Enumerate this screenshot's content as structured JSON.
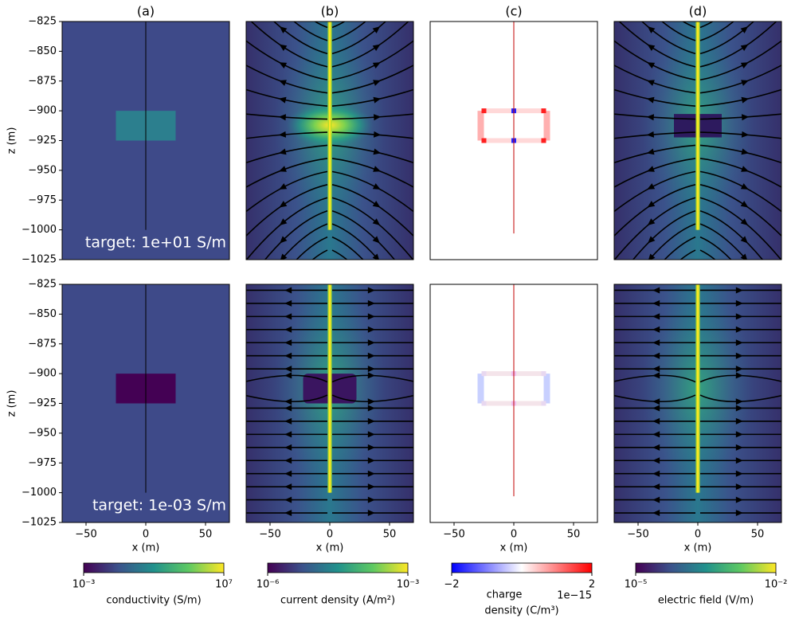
{
  "chart_data": [
    {
      "type": "field",
      "title": "(a)",
      "ylabel": "z (m)",
      "xlim": [
        -70,
        70
      ],
      "ylim": [
        -1025,
        -825
      ],
      "yticks": [
        {
          "value": -825,
          "label": "−825"
        },
        {
          "value": -850,
          "label": "−850"
        },
        {
          "value": -875,
          "label": "−875"
        },
        {
          "value": -900,
          "label": "−900"
        },
        {
          "value": -925,
          "label": "−925"
        },
        {
          "value": -950,
          "label": "−950"
        },
        {
          "value": -975,
          "label": "−975"
        },
        {
          "value": -1000,
          "label": "−1000"
        },
        {
          "value": -1025,
          "label": "−1025"
        }
      ],
      "annotation": "target: 1e+01 S/m"
    },
    {
      "type": "field",
      "title": "(b)",
      "xlim": [
        -70,
        70
      ],
      "ylim": [
        -1025,
        -825
      ]
    },
    {
      "type": "field",
      "title": "(c)",
      "xlim": [
        -70,
        70
      ],
      "ylim": [
        -1025,
        -825
      ]
    },
    {
      "type": "field",
      "title": "(d)",
      "xlim": [
        -70,
        70
      ],
      "ylim": [
        -1025,
        -825
      ]
    },
    {
      "type": "field",
      "ylabel": "z (m)",
      "xlabel": "x (m)",
      "xlim": [
        -70,
        70
      ],
      "ylim": [
        -1025,
        -825
      ],
      "xticks": [
        {
          "value": -50,
          "label": "−50"
        },
        0,
        50
      ],
      "yticks": [
        {
          "value": -825,
          "label": "−825"
        },
        {
          "value": -850,
          "label": "−850"
        },
        {
          "value": -875,
          "label": "−875"
        },
        {
          "value": -900,
          "label": "−900"
        },
        {
          "value": -925,
          "label": "−925"
        },
        {
          "value": -950,
          "label": "−950"
        },
        {
          "value": -975,
          "label": "−975"
        },
        {
          "value": -1000,
          "label": "−1000"
        },
        {
          "value": -1025,
          "label": "−1025"
        }
      ],
      "annotation": "target: 1e-03 S/m"
    },
    {
      "type": "field",
      "xlabel": "x (m)",
      "xlim": [
        -70,
        70
      ],
      "ylim": [
        -1025,
        -825
      ],
      "xticks": [
        {
          "value": -50,
          "label": "−50"
        },
        0,
        50
      ]
    },
    {
      "type": "field",
      "xlabel": "x (m)",
      "xlim": [
        -70,
        70
      ],
      "ylim": [
        -1025,
        -825
      ],
      "xticks": [
        {
          "value": -50,
          "label": "−50"
        },
        0,
        50
      ]
    },
    {
      "type": "field",
      "xlabel": "x (m)",
      "xlim": [
        -70,
        70
      ],
      "ylim": [
        -1025,
        -825
      ],
      "xticks": [
        {
          "value": -50,
          "label": "−50"
        },
        0,
        50
      ]
    }
  ],
  "colorbars": [
    {
      "label": [
        "conductivity (S/m)"
      ],
      "scale": "log",
      "lim": [
        0.001,
        10000000
      ],
      "ticks": [
        {
          "value": 0.001,
          "label": "10⁻³"
        },
        {
          "value": 10000000,
          "label": "10⁷"
        }
      ],
      "colormap": "viridis"
    },
    {
      "label": [
        "current density (A/m²)"
      ],
      "scale": "log",
      "lim": [
        1e-06,
        0.001
      ],
      "ticks": [
        {
          "value": 1e-06,
          "label": "10⁻⁶"
        },
        {
          "value": 0.001,
          "label": "10⁻³"
        }
      ],
      "colormap": "viridis"
    },
    {
      "label": [
        "charge",
        "density (C/m³)"
      ],
      "scale": "linear",
      "lim": [
        -2,
        2
      ],
      "ticks": [
        {
          "value": -2,
          "label": "−2"
        },
        2
      ],
      "offset_text": "1e−15",
      "colormap": "bwr"
    },
    {
      "label": [
        "electric field (V/m)"
      ],
      "scale": "log",
      "lim": [
        1e-05,
        0.01
      ],
      "ticks": [
        {
          "value": 1e-05,
          "label": "10⁻⁵"
        },
        {
          "value": 0.01,
          "label": "10⁻²"
        }
      ],
      "colormap": "viridis"
    }
  ]
}
